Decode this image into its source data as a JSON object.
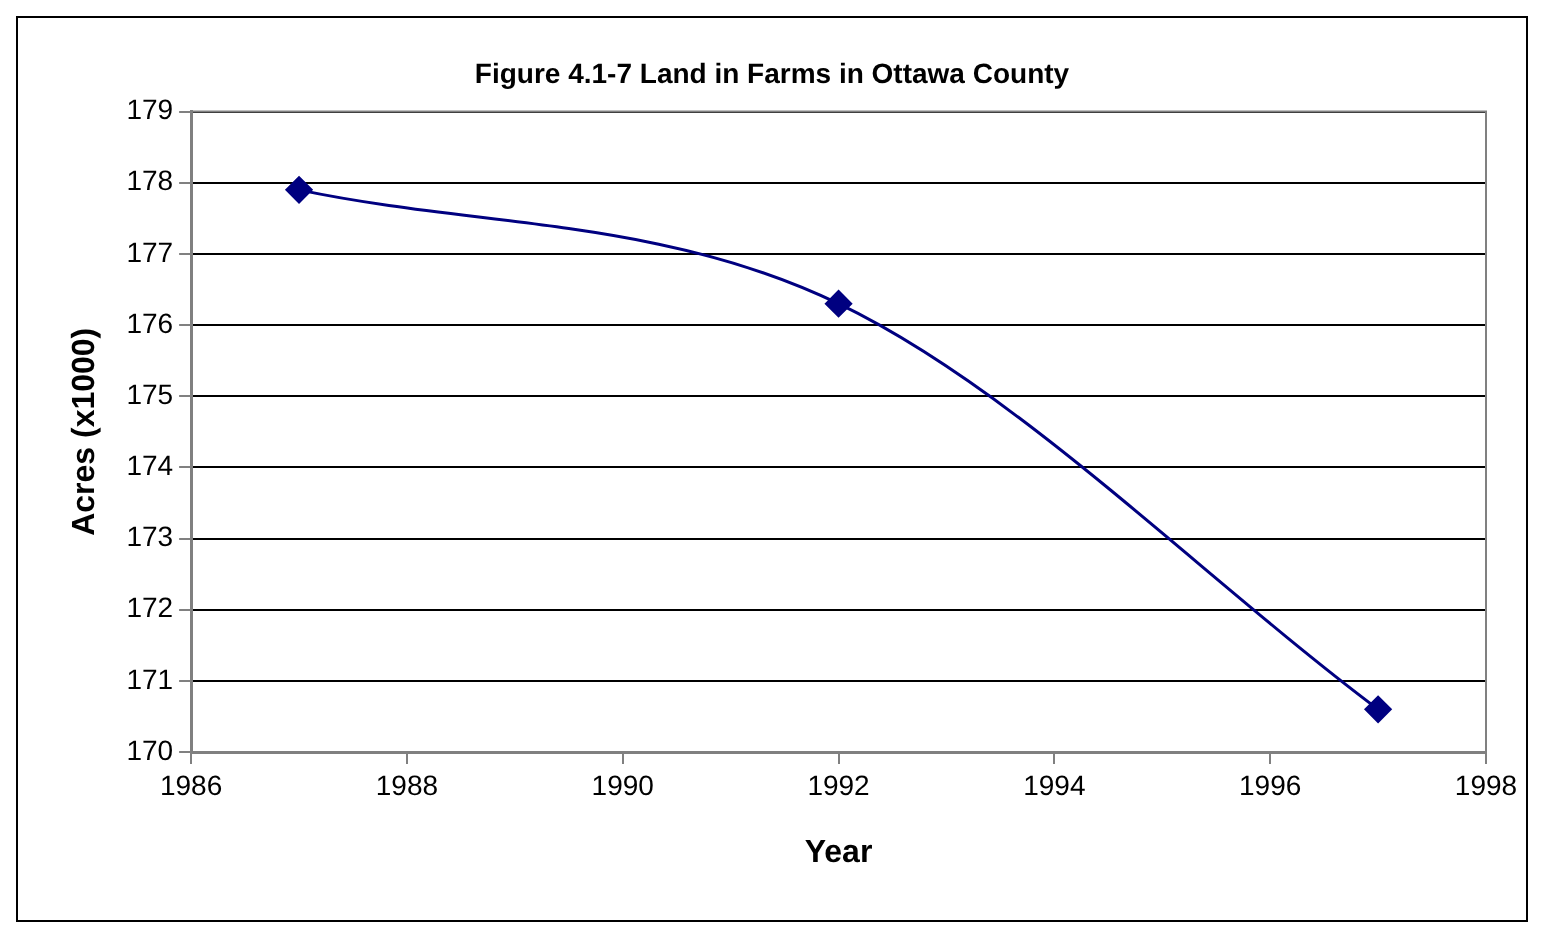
{
  "chart_data": {
    "type": "line",
    "title": "Figure 4.1-7 Land in Farms in Ottawa County",
    "xlabel": "Year",
    "ylabel": "Acres (x1000)",
    "x": [
      1987,
      1992,
      1997
    ],
    "series": [
      {
        "color": "#000080",
        "values": [
          177.9,
          176.3,
          170.6
        ]
      }
    ],
    "xlim": [
      1986,
      1998
    ],
    "xticks": [
      1986,
      1988,
      1990,
      1992,
      1994,
      1996,
      1998
    ],
    "ylim": [
      170,
      179
    ],
    "yticks": [
      170,
      171,
      172,
      173,
      174,
      175,
      176,
      177,
      178,
      179
    ],
    "grid": "y",
    "legend": false,
    "marker": "diamond",
    "line_style": "solid"
  }
}
